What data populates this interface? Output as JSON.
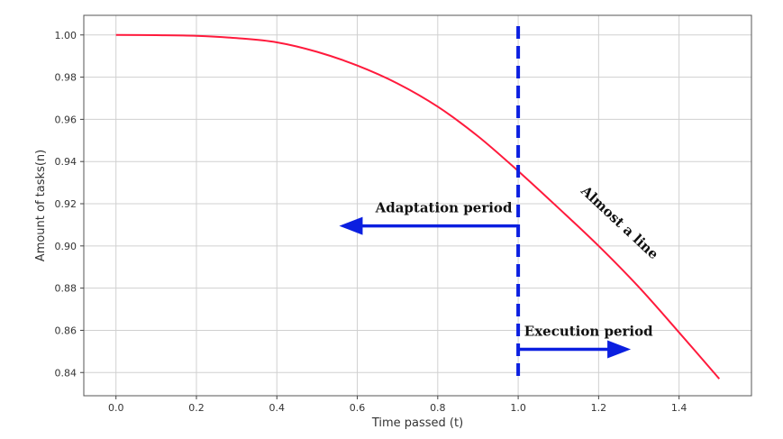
{
  "chart_data": {
    "type": "line",
    "title": "",
    "xlabel": "Time passed (t)",
    "ylabel": "Amount of tasks(n)",
    "xlim": [
      -0.08,
      1.58
    ],
    "ylim": [
      0.829,
      1.0093
    ],
    "grid": true,
    "x_ticks": [
      0.0,
      0.2,
      0.4,
      0.6,
      0.8,
      1.0,
      1.2,
      1.4
    ],
    "x_tick_labels": [
      "0.0",
      "0.2",
      "0.4",
      "0.6",
      "0.8",
      "1.0",
      "1.2",
      "1.4"
    ],
    "y_ticks": [
      0.84,
      0.86,
      0.88,
      0.9,
      0.92,
      0.94,
      0.96,
      0.98,
      1.0
    ],
    "y_tick_labels": [
      "0.84",
      "0.86",
      "0.88",
      "0.90",
      "0.92",
      "0.94",
      "0.96",
      "0.98",
      "1.00"
    ],
    "series": [
      {
        "color": "#ff1a3c",
        "x": [
          0.0,
          0.1,
          0.2,
          0.3,
          0.4,
          0.5,
          0.6,
          0.7,
          0.8,
          0.9,
          1.0,
          1.1,
          1.2,
          1.3,
          1.4,
          1.5
        ],
        "y": [
          1.0,
          0.9999,
          0.9996,
          0.9985,
          0.9965,
          0.992,
          0.9855,
          0.977,
          0.966,
          0.952,
          0.9355,
          0.918,
          0.9,
          0.8805,
          0.859,
          0.837
        ]
      }
    ],
    "vline": {
      "x": 1.0,
      "color": "#0b1fe0",
      "style": "dashed"
    },
    "annotations": [
      {
        "id": "adaptation",
        "text": "Adaptation period",
        "x": 0.815,
        "y": 0.916,
        "arrow": {
          "from": [
            1.0,
            0.9095
          ],
          "to": [
            0.555,
            0.9095
          ]
        }
      },
      {
        "id": "execution",
        "text": "Execution period",
        "x": 1.175,
        "y": 0.8575,
        "arrow": {
          "from": [
            1.0,
            0.851
          ],
          "to": [
            1.28,
            0.851
          ]
        }
      },
      {
        "id": "almost_line",
        "text": "Almost a line",
        "x": 1.245,
        "y": 0.9095,
        "rotation": 43
      }
    ],
    "arrow_color": "#0b1fe0"
  }
}
